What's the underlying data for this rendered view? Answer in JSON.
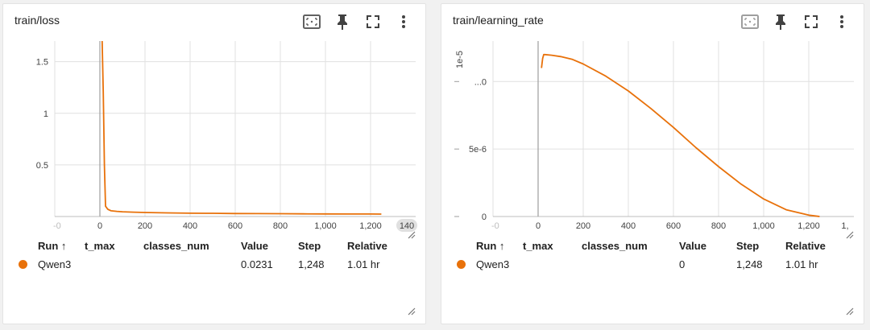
{
  "colors": {
    "series": "#e8710a",
    "grid": "#e0e0e0",
    "axis": "#9e9e9e"
  },
  "cards": [
    {
      "id": "loss",
      "title": "train/loss",
      "table": {
        "headers": {
          "run": "Run ↑",
          "t_max": "t_max",
          "classes_num": "classes_num",
          "value": "Value",
          "step": "Step",
          "relative": "Relative"
        },
        "row": {
          "run": "Qwen3",
          "t_max": "",
          "classes_num": "",
          "value": "0.0231",
          "step": "1,248",
          "relative": "1.01 hr"
        }
      }
    },
    {
      "id": "lr",
      "title": "train/learning_rate",
      "table": {
        "headers": {
          "run": "Run ↑",
          "t_max": "t_max",
          "classes_num": "classes_num",
          "value": "Value",
          "step": "Step",
          "relative": "Relative"
        },
        "row": {
          "run": "Qwen3",
          "t_max": "",
          "classes_num": "",
          "value": "0",
          "step": "1,248",
          "relative": "1.01 hr"
        }
      }
    }
  ],
  "toolbar_icons": [
    "fit-domain-icon",
    "pin-icon",
    "fullscreen-icon",
    "more-vert-icon"
  ],
  "chart_data": [
    {
      "type": "line",
      "title": "train/loss",
      "xlim": [
        -200,
        1400
      ],
      "ylim": [
        0,
        1.7
      ],
      "x_ticks": [
        0,
        200,
        400,
        600,
        800,
        1000,
        1200
      ],
      "x_tick_labels": [
        "0",
        "200",
        "400",
        "600",
        "800",
        "1,000",
        "1,200"
      ],
      "x_edge_labels": {
        "left": "-0",
        "right": "140"
      },
      "y_ticks": [
        0.5,
        1,
        1.5
      ],
      "y_tick_labels": [
        "0.5",
        "1",
        "1.5"
      ],
      "series": [
        {
          "name": "Qwen3",
          "x": [
            10,
            15,
            20,
            25,
            35,
            50,
            75,
            100,
            150,
            200,
            300,
            400,
            500,
            600,
            700,
            800,
            900,
            1000,
            1100,
            1200,
            1248
          ],
          "y": [
            1.7,
            1.2,
            0.5,
            0.1,
            0.07,
            0.055,
            0.05,
            0.046,
            0.042,
            0.039,
            0.035,
            0.032,
            0.031,
            0.029,
            0.028,
            0.027,
            0.026,
            0.025,
            0.024,
            0.024,
            0.0231
          ]
        }
      ]
    },
    {
      "type": "line",
      "title": "train/learning_rate",
      "exponent_label": "1e-5",
      "xlim": [
        -200,
        1400
      ],
      "ylim": [
        0,
        1.3e-05
      ],
      "x_ticks": [
        0,
        200,
        400,
        600,
        800,
        1000,
        1200
      ],
      "x_tick_labels": [
        "0",
        "200",
        "400",
        "600",
        "800",
        "1,000",
        "1,200"
      ],
      "x_edge_labels": {
        "left": "-0",
        "right": "1,"
      },
      "y_ticks": [
        0,
        5e-06,
        1e-05
      ],
      "y_tick_labels": [
        "0",
        "5e-6",
        "...0"
      ],
      "series": [
        {
          "name": "Qwen3",
          "x": [
            15,
            20,
            25,
            30,
            60,
            100,
            150,
            200,
            300,
            400,
            500,
            600,
            700,
            800,
            900,
            1000,
            1100,
            1200,
            1248
          ],
          "y": [
            1.1e-05,
            1.17e-05,
            1.2e-05,
            1.2e-05,
            1.195e-05,
            1.185e-05,
            1.165e-05,
            1.13e-05,
            1.04e-05,
            9.3e-06,
            8e-06,
            6.6e-06,
            5.1e-06,
            3.7e-06,
            2.4e-06,
            1.3e-06,
            5e-07,
            1e-07,
            0
          ]
        }
      ]
    }
  ]
}
